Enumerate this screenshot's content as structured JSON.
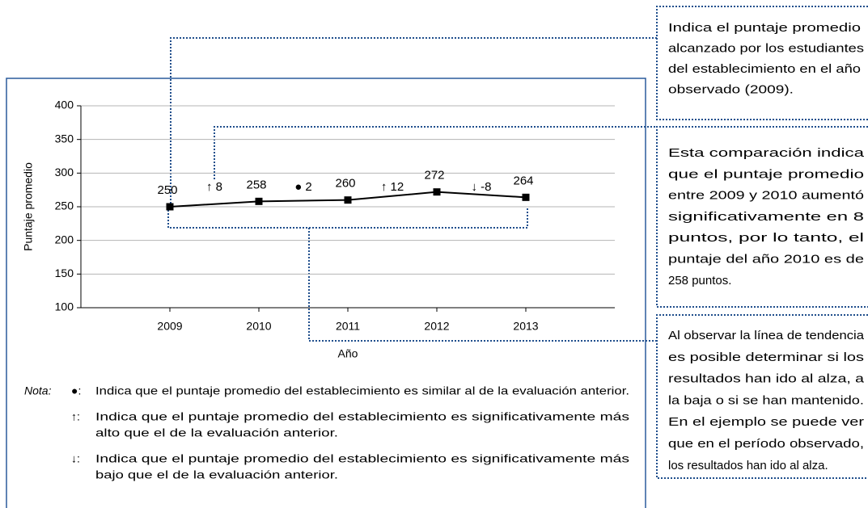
{
  "chart_data": {
    "type": "line",
    "x_label": "Año",
    "y_label": "Puntaje promedio",
    "categories": [
      "2009",
      "2010",
      "2011",
      "2012",
      "2013"
    ],
    "values": [
      250,
      258,
      260,
      272,
      264
    ],
    "color": "#000000",
    "ylim": [
      100,
      400
    ],
    "yticks": [
      100,
      150,
      200,
      250,
      300,
      350,
      400
    ],
    "grid": true,
    "changes": [
      "↑ 8",
      "● 2",
      "↑ 12",
      "↓ -8"
    ]
  },
  "notes": {
    "label": "Nota:",
    "items": [
      {
        "symbol": "●:",
        "lines": [
          "Indica que el puntaje promedio del establecimiento es similar al de la evaluación anterior."
        ]
      },
      {
        "symbol": "↑:",
        "lines": [
          "Indica que el puntaje promedio del establecimiento es significativamente más",
          "alto que el de la evaluación anterior."
        ]
      },
      {
        "symbol": "↓:",
        "lines": [
          "Indica que el puntaje promedio del establecimiento es significativamente más",
          "bajo que el de la evaluación anterior."
        ]
      }
    ]
  },
  "callouts": [
    {
      "lines": [
        "Indica el puntaje promedio",
        "alcanzado por los estudiantes",
        "del establecimiento en el año",
        "observado (2009)."
      ]
    },
    {
      "lines": [
        "Esta comparación indica",
        "que el puntaje promedio",
        "entre 2009 y 2010 aumentó",
        "significativamente en 8",
        "puntos, por lo tanto, el",
        "puntaje del año 2010 es de",
        "258 puntos."
      ]
    },
    {
      "lines": [
        "Al observar la línea de tendencia",
        "es posible determinar si los",
        "resultados han ido al alza, a",
        "la baja o si se han mantenido.",
        "En el ejemplo se puede ver",
        "que en el período observado,",
        "los resultados han ido al alza."
      ]
    }
  ]
}
